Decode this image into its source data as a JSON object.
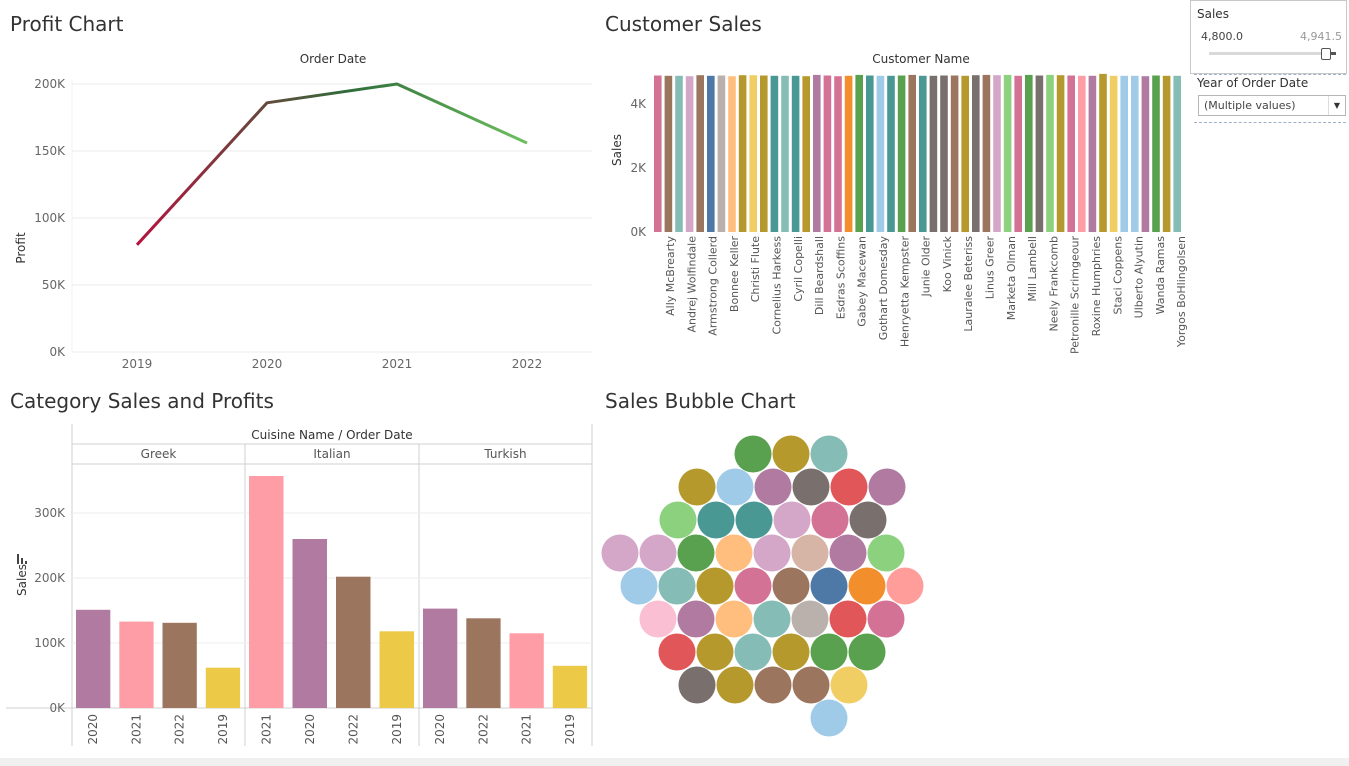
{
  "titles": {
    "profit": "Profit Chart",
    "customer": "Customer Sales",
    "category": "Category Sales and Profits",
    "bubble": "Sales Bubble Chart"
  },
  "filters": {
    "sales_label": "Sales",
    "sales_min": "4,800.0",
    "sales_max": "4,941.5",
    "sales_position": 0.92,
    "year_label": "Year of Order Date",
    "year_value": "(Multiple values)"
  },
  "colors": {
    "profit_gradient": [
      "#b5133e",
      "#2e6e3a",
      "#6fbf5f"
    ],
    "category_greek": [
      "#b07aa1",
      "#ff9da7",
      "#9c755f",
      "#edc948"
    ],
    "category_italian": [
      "#ff9da7",
      "#b07aa1",
      "#9c755f",
      "#edc948"
    ],
    "category_turkish": [
      "#b07aa1",
      "#9c755f",
      "#ff9da7",
      "#edc948"
    ]
  },
  "chart_data": [
    {
      "type": "line",
      "title": "Profit Chart",
      "xlabel": "Order Date",
      "ylabel": "Profit",
      "x": [
        "2019",
        "2020",
        "2021",
        "2022"
      ],
      "values": [
        80000,
        186000,
        200000,
        156000
      ],
      "yticks": [
        "0K",
        "50K",
        "100K",
        "150K",
        "200K"
      ],
      "ylim": [
        0,
        220000
      ],
      "grid": true
    },
    {
      "type": "bar",
      "title": "Customer Sales",
      "xlabel": "Customer Name",
      "ylabel": "Sales",
      "ylim": [
        0,
        5000
      ],
      "yticks": [
        "0K",
        "2K",
        "4K"
      ],
      "categories": [
        "Ally McBrearty",
        "Andrej Wolfindale",
        "Armstrong Collerd",
        "Bonnee Keller",
        "Christi Flute",
        "Cornelius Harkess",
        "Cyril Copelli",
        "Dill Beardshall",
        "Esdras Scoffins",
        "Gabey Macewan",
        "Gothart Domesday",
        "Henryetta Kempster",
        "Junie Older",
        "Koo Vinick",
        "Lauralee Beteriss",
        "Linus Greer",
        "Marketa Olman",
        "Mill Lambell",
        "Neely Frankcomb",
        "Petronille Scrimgeour",
        "Roxine Humphries",
        "Staci Coppens",
        "Ulberto Alyutin",
        "Wanda Ramas",
        "Yorgos BoHlingolsen"
      ],
      "bars": [
        {
          "value": 4890,
          "color": "#d37295"
        },
        {
          "value": 4880,
          "color": "#9c755f"
        },
        {
          "value": 4880,
          "color": "#86bcb6"
        },
        {
          "value": 4870,
          "color": "#d4a6c8"
        },
        {
          "value": 4900,
          "color": "#9d7660"
        },
        {
          "value": 4880,
          "color": "#4e79a7"
        },
        {
          "value": 4890,
          "color": "#bab0ac"
        },
        {
          "value": 4870,
          "color": "#ffbe7d"
        },
        {
          "value": 4900,
          "color": "#b6992d"
        },
        {
          "value": 4900,
          "color": "#f1ce63"
        },
        {
          "value": 4890,
          "color": "#b6992d"
        },
        {
          "value": 4880,
          "color": "#499894"
        },
        {
          "value": 4880,
          "color": "#86bcb6"
        },
        {
          "value": 4880,
          "color": "#499894"
        },
        {
          "value": 4870,
          "color": "#b6992d"
        },
        {
          "value": 4910,
          "color": "#b07aa1"
        },
        {
          "value": 4890,
          "color": "#d37295"
        },
        {
          "value": 4870,
          "color": "#d37295"
        },
        {
          "value": 4880,
          "color": "#f28e2b"
        },
        {
          "value": 4910,
          "color": "#59a14f"
        },
        {
          "value": 4890,
          "color": "#499894"
        },
        {
          "value": 4880,
          "color": "#a0cbe8"
        },
        {
          "value": 4880,
          "color": "#499894"
        },
        {
          "value": 4890,
          "color": "#59a14f"
        },
        {
          "value": 4910,
          "color": "#9c755f"
        },
        {
          "value": 4880,
          "color": "#499894"
        },
        {
          "value": 4880,
          "color": "#79706e"
        },
        {
          "value": 4890,
          "color": "#79706e"
        },
        {
          "value": 4890,
          "color": "#9c755f"
        },
        {
          "value": 4880,
          "color": "#b6992d"
        },
        {
          "value": 4900,
          "color": "#79706e"
        },
        {
          "value": 4910,
          "color": "#9c755f"
        },
        {
          "value": 4900,
          "color": "#d4a6c8"
        },
        {
          "value": 4910,
          "color": "#8cd17d"
        },
        {
          "value": 4880,
          "color": "#d37295"
        },
        {
          "value": 4910,
          "color": "#59a14f"
        },
        {
          "value": 4890,
          "color": "#79706e"
        },
        {
          "value": 4910,
          "color": "#8cd17d"
        },
        {
          "value": 4900,
          "color": "#b6992d"
        },
        {
          "value": 4890,
          "color": "#d37295"
        },
        {
          "value": 4880,
          "color": "#ff9da7"
        },
        {
          "value": 4880,
          "color": "#b07aa1"
        },
        {
          "value": 4940,
          "color": "#b6992d"
        },
        {
          "value": 4880,
          "color": "#f1ce63"
        },
        {
          "value": 4880,
          "color": "#a0cbe8"
        },
        {
          "value": 4880,
          "color": "#a0cbe8"
        },
        {
          "value": 4870,
          "color": "#b07aa1"
        },
        {
          "value": 4890,
          "color": "#59a14f"
        },
        {
          "value": 4880,
          "color": "#b6992d"
        },
        {
          "value": 4880,
          "color": "#86bcb6"
        }
      ]
    },
    {
      "type": "bar",
      "title": "Category Sales and Profits",
      "xlabel": "Cuisine Name / Order Date",
      "ylabel": "Sales",
      "ylim": [
        0,
        370000
      ],
      "yticks": [
        "0K",
        "100K",
        "200K",
        "300K"
      ],
      "groups": [
        {
          "name": "Greek",
          "categories": [
            "2020",
            "2021",
            "2022",
            "2019"
          ],
          "values": [
            151000,
            133000,
            131000,
            62000
          ]
        },
        {
          "name": "Italian",
          "categories": [
            "2021",
            "2020",
            "2022",
            "2019"
          ],
          "values": [
            357000,
            260000,
            202000,
            118000
          ]
        },
        {
          "name": "Turkish",
          "categories": [
            "2020",
            "2022",
            "2021",
            "2019"
          ],
          "values": [
            153000,
            138000,
            115000,
            65000
          ]
        }
      ]
    },
    {
      "type": "scatter",
      "title": "Sales Bubble Chart",
      "rows": [
        [
          "#59a14f",
          "#b6992d",
          "#86bcb6"
        ],
        [
          "#b6992d",
          "#a0cbe8",
          "#b07aa1",
          "#79706e",
          "#e15759",
          "#b07aa1"
        ],
        [
          "#8cd17d",
          "#499894",
          "#499894",
          "#d4a6c8",
          "#d37295",
          "#79706e"
        ],
        [
          "#d4a6c8",
          "#d4a6c8",
          "#59a14f",
          "#ffbe7d",
          "#d4a6c8",
          "#d7b5a6",
          "#b07aa1",
          "#8cd17d"
        ],
        [
          "#a0cbe8",
          "#86bcb6",
          "#b6992d",
          "#d37295",
          "#9c755f",
          "#4e79a7",
          "#f28e2b",
          "#ff9d9a"
        ],
        [
          "#fabfd2",
          "#b07aa1",
          "#ffbe7d",
          "#86bcb6",
          "#bab0ac",
          "#e15759",
          "#d37295"
        ],
        [
          "#e15759",
          "#b6992d",
          "#86bcb6",
          "#b6992d",
          "#59a14f",
          "#59a14f"
        ],
        [
          "#79706e",
          "#b6992d",
          "#9c755f",
          "#9c755f",
          "#f1ce63"
        ],
        [
          "#a0cbe8"
        ]
      ]
    }
  ]
}
